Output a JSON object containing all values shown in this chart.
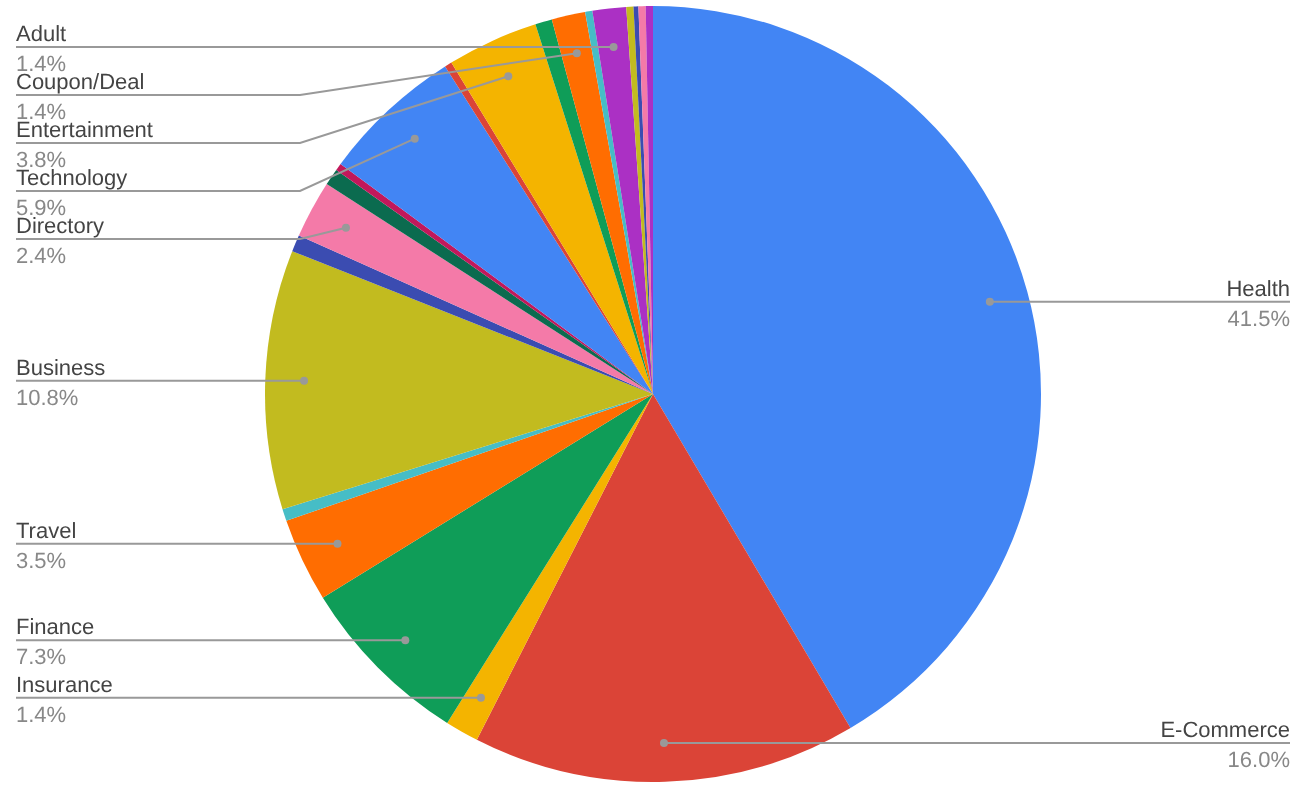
{
  "chart_data": {
    "type": "pie",
    "categories": [
      "Health",
      "E-Commerce",
      "Insurance",
      "Finance",
      "Travel",
      null,
      "Business",
      null,
      "Directory",
      null,
      null,
      "Technology",
      null,
      "Entertainment",
      null,
      "Coupon/Deal",
      null,
      "Adult",
      null,
      null,
      null,
      null
    ],
    "values": [
      41.5,
      16.0,
      1.4,
      7.3,
      3.5,
      0.5,
      10.8,
      0.7,
      2.4,
      0.7,
      0.3,
      5.9,
      0.3,
      3.8,
      0.7,
      1.4,
      0.3,
      1.4,
      0.3,
      0.2,
      0.3,
      0.3
    ],
    "colors": [
      "#4285f4",
      "#db4437",
      "#f4b400",
      "#0f9d58",
      "#ff6d01",
      "#46bdc6",
      "#c2bb1f",
      "#3b4cb1",
      "#f47aa8",
      "#0b6b4f",
      "#c2185b",
      "#4285f4",
      "#db4437",
      "#f4b400",
      "#0f9d58",
      "#ff6d01",
      "#46bdc6",
      "#ab30c4",
      "#c2bb1f",
      "#3b4cb1",
      "#f47aa8",
      "#ab30c4"
    ],
    "value_labels": [
      "41.5%",
      "16.0%",
      "1.4%",
      "7.3%",
      "3.5%",
      null,
      "10.8%",
      null,
      "2.4%",
      null,
      null,
      "5.9%",
      null,
      "3.8%",
      null,
      "1.4%",
      null,
      "1.4%",
      null,
      null,
      null,
      null
    ],
    "legend": false
  }
}
